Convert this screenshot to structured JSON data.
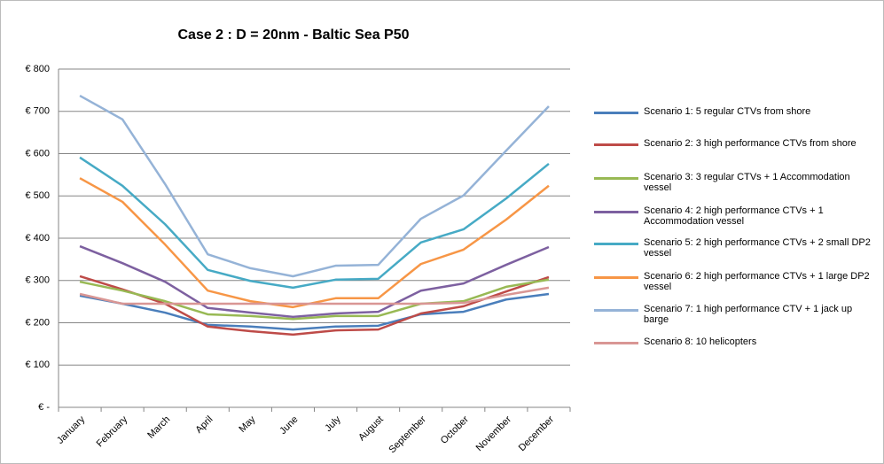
{
  "chart_data": {
    "type": "line",
    "title": "Case 2 : D = 20nm - Baltic Sea P50",
    "categories": [
      "January",
      "February",
      "March",
      "April",
      "May",
      "June",
      "July",
      "August",
      "September",
      "October",
      "November",
      "December"
    ],
    "ylim": [
      0,
      800
    ],
    "yticks": [
      {
        "value": 0,
        "label": "€ -"
      },
      {
        "value": 100,
        "label": "€ 100"
      },
      {
        "value": 200,
        "label": "€ 200"
      },
      {
        "value": 300,
        "label": "€ 300"
      },
      {
        "value": 400,
        "label": "€ 400"
      },
      {
        "value": 500,
        "label": "€ 500"
      },
      {
        "value": 600,
        "label": "€ 600"
      },
      {
        "value": 700,
        "label": "€ 700"
      },
      {
        "value": 800,
        "label": "€ 800"
      }
    ],
    "grid": true,
    "series": [
      {
        "name": "Scenario 1: 5 regular CTVs from shore",
        "color": "#4a7ebb",
        "values": [
          264,
          245,
          224,
          195,
          191,
          184,
          191,
          193,
          220,
          226,
          255,
          268
        ]
      },
      {
        "name": "Scenario 2: 3 high performance CTVs from shore",
        "color": "#be4b48",
        "values": [
          310,
          279,
          245,
          191,
          180,
          172,
          182,
          184,
          222,
          239,
          274,
          308
        ]
      },
      {
        "name": "Scenario 3: 3 regular CTVs + 1 Accommodation vessel",
        "color": "#98b954",
        "values": [
          297,
          276,
          251,
          220,
          216,
          209,
          216,
          216,
          245,
          251,
          285,
          302
        ]
      },
      {
        "name": "Scenario 4: 2 high performance CTVs + 1 Accommodation vessel",
        "color": "#7d60a0",
        "values": [
          381,
          341,
          297,
          235,
          224,
          214,
          222,
          226,
          276,
          293,
          337,
          379
        ]
      },
      {
        "name": "Scenario 5: 2 high performance CTVs + 2 small DP2 vessel",
        "color": "#46aac5",
        "values": [
          591,
          524,
          433,
          325,
          299,
          283,
          302,
          304,
          390,
          421,
          494,
          576
        ]
      },
      {
        "name": "Scenario 6: 2 high performance CTVs + 1 large DP2 vessel",
        "color": "#f79646",
        "values": [
          542,
          486,
          385,
          276,
          251,
          237,
          258,
          258,
          339,
          373,
          444,
          524
        ]
      },
      {
        "name": "Scenario 7: 1 high performance CTV + 1 jack up barge",
        "color": "#95b3d7",
        "values": [
          737,
          681,
          528,
          362,
          329,
          310,
          335,
          337,
          446,
          501,
          607,
          712
        ]
      },
      {
        "name": "Scenario 8: 10 helicopters",
        "color": "#d99694",
        "values": [
          268,
          245,
          245,
          245,
          245,
          245,
          245,
          245,
          245,
          247,
          266,
          283
        ]
      }
    ]
  }
}
